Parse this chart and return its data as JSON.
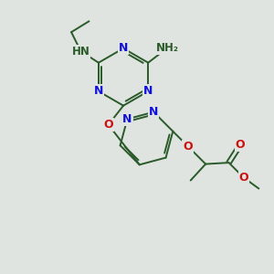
{
  "bg_color": "#e0e4e0",
  "bond_color": "#2a5a2a",
  "N_color": "#1010dd",
  "O_color": "#cc1010",
  "H_color": "#2a5a2a",
  "bond_width": 1.4,
  "figsize": [
    3.0,
    3.0
  ],
  "dpi": 100,
  "xlim": [
    0,
    10
  ],
  "ylim": [
    0,
    10
  ]
}
